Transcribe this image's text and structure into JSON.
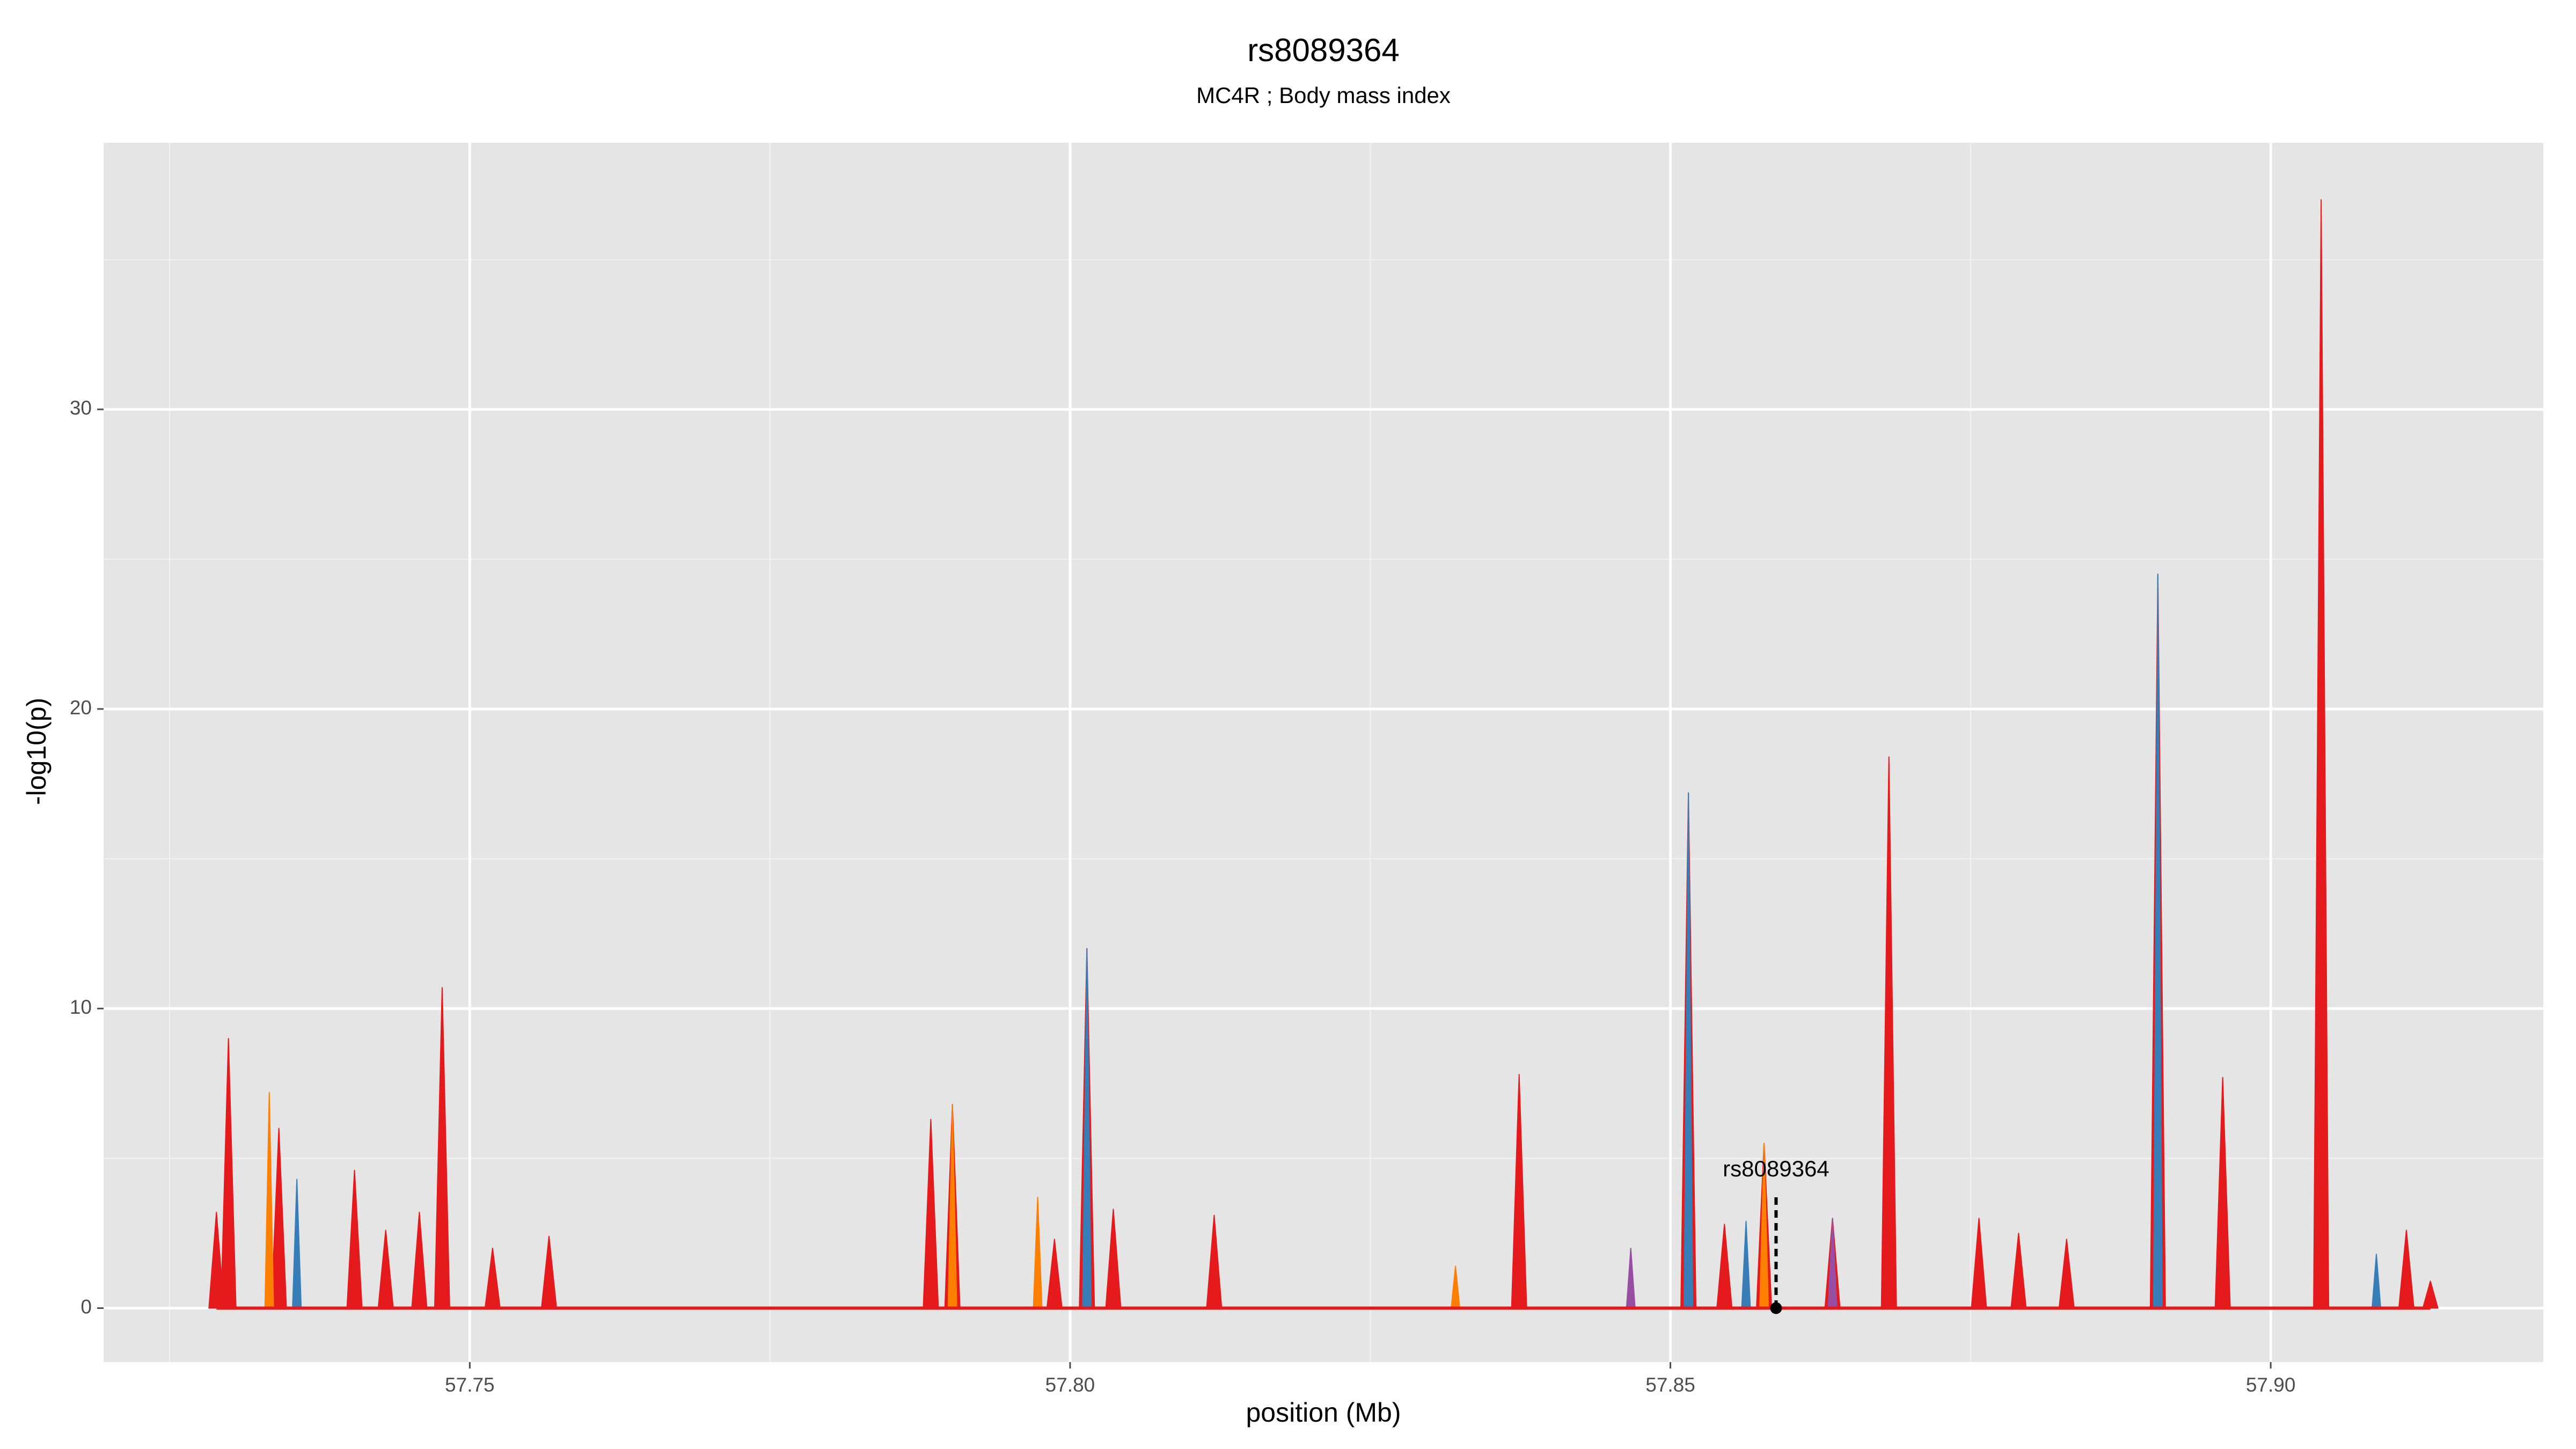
{
  "chart_data": {
    "type": "area",
    "title": "rs8089364",
    "subtitle": "MC4R ; Body mass index",
    "x_label": "position (Mb)",
    "y_label": "-log10(p)",
    "xlim": [
      57.7195,
      57.9227
    ],
    "ylim": [
      -1.8,
      38.9
    ],
    "xticks": [
      {
        "value": 57.75,
        "label": "57.75"
      },
      {
        "value": 57.8,
        "label": "57.80"
      },
      {
        "value": 57.85,
        "label": "57.85"
      },
      {
        "value": 57.9,
        "label": "57.90"
      }
    ],
    "yticks": [
      0,
      10,
      20,
      30
    ],
    "grid": true,
    "series": [
      {
        "name": "red",
        "color": "#e41a1c",
        "x": [
          57.7289,
          57.7299,
          57.7341,
          57.7404,
          57.743,
          57.7458,
          57.7477,
          57.7519,
          57.7566,
          57.7884,
          57.7902,
          57.7987,
          57.8014,
          57.8036,
          57.812,
          57.8374,
          57.8515,
          57.8545,
          57.8578,
          57.8635,
          57.8682,
          57.8757,
          57.879,
          57.883,
          57.8906,
          57.896,
          57.9042,
          57.9113,
          57.9133
        ],
        "values": [
          3.2,
          9.0,
          6.0,
          4.6,
          2.6,
          3.2,
          10.7,
          2.0,
          2.4,
          6.3,
          6.8,
          2.3,
          12.0,
          3.3,
          3.1,
          7.8,
          17.2,
          2.8,
          5.5,
          3.0,
          18.4,
          3.0,
          2.5,
          2.3,
          24.5,
          7.7,
          37.0,
          2.6,
          0.9
        ]
      },
      {
        "name": "orange",
        "color": "#ff7f00",
        "x": [
          57.7333,
          57.7902,
          57.7973,
          57.8321,
          57.8578
        ],
        "values": [
          7.2,
          6.8,
          3.7,
          1.4,
          5.5
        ]
      },
      {
        "name": "purple",
        "color": "#984ea3",
        "x": [
          57.8467,
          57.8635
        ],
        "values": [
          2.0,
          3.0
        ]
      },
      {
        "name": "blue",
        "color": "#377eb8",
        "x": [
          57.7356,
          57.8014,
          57.8515,
          57.8563,
          57.8906,
          57.9088
        ],
        "values": [
          4.3,
          12.0,
          17.2,
          2.9,
          24.5,
          1.8
        ]
      }
    ],
    "annotation": {
      "label": "rs8089364",
      "x": 57.8588,
      "y": 0,
      "label_y": 4.6,
      "line_top": 3.7
    }
  }
}
